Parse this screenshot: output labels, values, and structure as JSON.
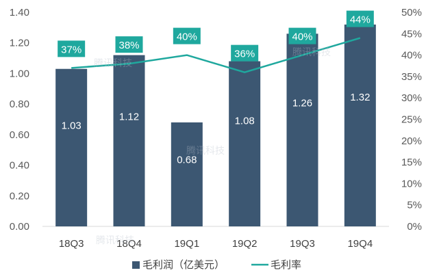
{
  "chart_data": {
    "type": "bar",
    "categories": [
      "18Q3",
      "18Q4",
      "19Q1",
      "19Q2",
      "19Q3",
      "19Q4"
    ],
    "series": [
      {
        "name": "毛利润（亿美元）",
        "type": "bar",
        "axis": "left",
        "color": "#3c5772",
        "values": [
          1.03,
          1.12,
          0.68,
          1.08,
          1.26,
          1.32
        ],
        "labels": [
          "1.03",
          "1.12",
          "0.68",
          "1.08",
          "1.26",
          "1.32"
        ]
      },
      {
        "name": "毛利率",
        "type": "line",
        "axis": "right",
        "color": "#1fa89e",
        "values": [
          37,
          38,
          40,
          36,
          40,
          44
        ],
        "labels": [
          "37%",
          "38%",
          "40%",
          "36%",
          "40%",
          "44%"
        ]
      }
    ],
    "y_left": {
      "min": 0,
      "max": 1.4,
      "ticks": [
        "0.00",
        "0.20",
        "0.40",
        "0.60",
        "0.80",
        "1.00",
        "1.20",
        "1.40"
      ]
    },
    "y_right": {
      "min": 0,
      "max": 50,
      "ticks": [
        "0%",
        "5%",
        "10%",
        "15%",
        "20%",
        "25%",
        "30%",
        "35%",
        "40%",
        "45%",
        "50%"
      ]
    },
    "grid": false,
    "legend_position": "bottom",
    "watermark": "腾讯科技"
  }
}
